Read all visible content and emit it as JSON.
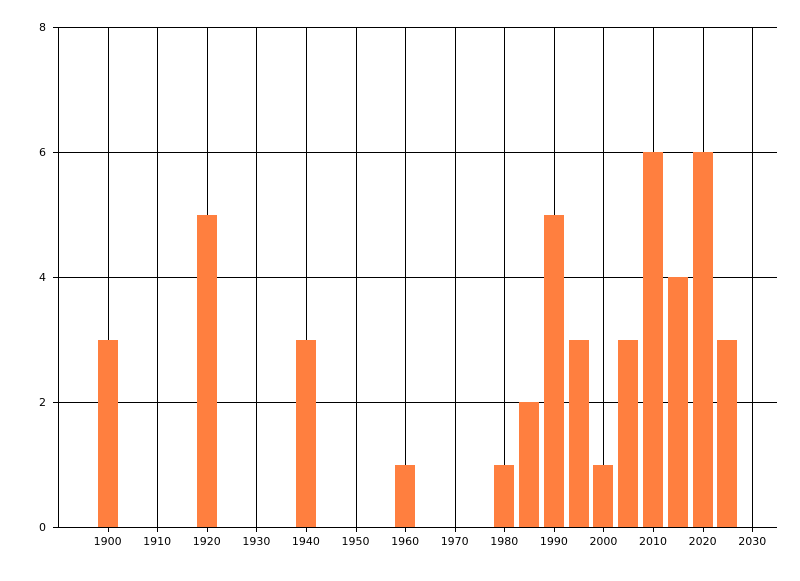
{
  "chart_data": {
    "type": "bar",
    "title": "",
    "xlabel": "",
    "ylabel": "",
    "x": [
      1900,
      1920,
      1940,
      1960,
      1980,
      1985,
      1990,
      1995,
      2000,
      2005,
      2010,
      2015,
      2020,
      2025
    ],
    "values": [
      3,
      5,
      3,
      1,
      1,
      2,
      5,
      3,
      1,
      3,
      6,
      4,
      6,
      3
    ],
    "xlim": [
      1890,
      2035
    ],
    "ylim": [
      0,
      8
    ],
    "x_ticks": [
      1900,
      1910,
      1920,
      1930,
      1940,
      1950,
      1960,
      1970,
      1980,
      1990,
      2000,
      2010,
      2020,
      2030
    ],
    "y_ticks": [
      0,
      2,
      4,
      6,
      8
    ],
    "x_tick_labels": [
      "1900",
      "1910",
      "1920",
      "1930",
      "1940",
      "1950",
      "1960",
      "1970",
      "1980",
      "1990",
      "2000",
      "2010",
      "2020",
      "2030"
    ],
    "y_tick_labels": [
      "0",
      "2",
      "4",
      "6",
      "8"
    ],
    "bar_color": "#ff7f3f",
    "grid": true,
    "legend": "none"
  }
}
